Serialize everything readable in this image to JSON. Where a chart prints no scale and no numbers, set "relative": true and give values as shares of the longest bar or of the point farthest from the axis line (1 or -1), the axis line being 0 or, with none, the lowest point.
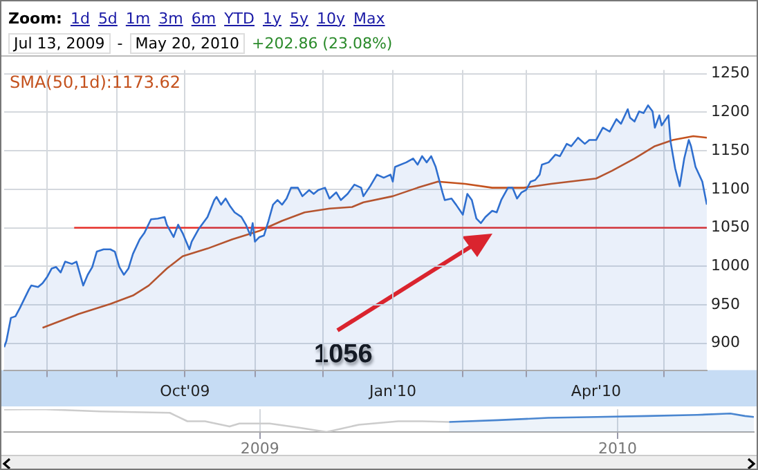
{
  "chart_data": [
    {
      "type": "area",
      "annotations": [
        "Zoom:",
        "1d",
        "5d",
        "1m",
        "3m",
        "6m",
        "YTD",
        "1y",
        "5y",
        "10y",
        "Max",
        "Jul 13, 2009",
        "-",
        "May 20, 2010",
        "+202.86 (23.08%)",
        "1056"
      ],
      "xlim": [
        "2009-07-13",
        "2010-05-20"
      ],
      "xticks": [
        {
          "value": "2009-08-01",
          "label": null
        },
        {
          "value": "2009-09-01",
          "label": null
        },
        {
          "value": "2009-10-01",
          "label": "Oct'09"
        },
        {
          "value": "2009-11-01",
          "label": null
        },
        {
          "value": "2009-12-01",
          "label": null
        },
        {
          "value": "2010-01-01",
          "label": "Jan'10"
        },
        {
          "value": "2010-02-01",
          "label": null
        },
        {
          "value": "2010-03-01",
          "label": null
        },
        {
          "value": "2010-04-01",
          "label": "Apr'10"
        },
        {
          "value": "2010-05-01",
          "label": null
        }
      ],
      "ylim": [
        865,
        1255
      ],
      "yticks": [
        900,
        950,
        1000,
        1050,
        1100,
        1150,
        1200,
        1250
      ],
      "grid": true,
      "legend": "top left",
      "marker": "none",
      "line_style": "solid",
      "series": [
        {
          "color": "#2f6fcf",
          "x": [
            "2009-07-13",
            "2009-07-14",
            "2009-07-16",
            "2009-07-18",
            "2009-07-20",
            "2009-07-24",
            "2009-07-25",
            "2009-07-28",
            "2009-07-30",
            "2009-08-01",
            "2009-08-03",
            "2009-08-05",
            "2009-08-07",
            "2009-08-09",
            "2009-08-12",
            "2009-08-14",
            "2009-08-17",
            "2009-08-19",
            "2009-08-21",
            "2009-08-23",
            "2009-08-26",
            "2009-08-29",
            "2009-08-31",
            "2009-09-02",
            "2009-09-04",
            "2009-09-06",
            "2009-09-08",
            "2009-09-11",
            "2009-09-13",
            "2009-09-16",
            "2009-09-19",
            "2009-09-22",
            "2009-09-23",
            "2009-09-26",
            "2009-09-28",
            "2009-09-30",
            "2009-10-03",
            "2009-10-04",
            "2009-10-07",
            "2009-10-11",
            "2009-10-14",
            "2009-10-15",
            "2009-10-17",
            "2009-10-19",
            "2009-10-21",
            "2009-10-23",
            "2009-10-26",
            "2009-10-28",
            "2009-10-30",
            "2009-10-31",
            "2009-11-01",
            "2009-11-03",
            "2009-11-05",
            "2009-11-07",
            "2009-11-09",
            "2009-11-11",
            "2009-11-13",
            "2009-11-15",
            "2009-11-17",
            "2009-11-20",
            "2009-11-22",
            "2009-11-25",
            "2009-11-27",
            "2009-11-29",
            "2009-12-02",
            "2009-12-04",
            "2009-12-07",
            "2009-12-09",
            "2009-12-12",
            "2009-12-15",
            "2009-12-18",
            "2009-12-19",
            "2009-12-22",
            "2009-12-25",
            "2009-12-28",
            "2009-12-31",
            "2010-01-01",
            "2010-01-02",
            "2010-01-07",
            "2010-01-10",
            "2010-01-12",
            "2010-01-14",
            "2010-01-16",
            "2010-01-18",
            "2010-01-20",
            "2010-01-23",
            "2010-01-24",
            "2010-01-27",
            "2010-01-29",
            "2010-02-01",
            "2010-02-03",
            "2010-02-05",
            "2010-02-07",
            "2010-02-09",
            "2010-02-11",
            "2010-02-14",
            "2010-02-16",
            "2010-02-18",
            "2010-02-21",
            "2010-02-23",
            "2010-02-25",
            "2010-02-27",
            "2010-03-01",
            "2010-03-03",
            "2010-03-05",
            "2010-03-07",
            "2010-03-08",
            "2010-03-11",
            "2010-03-14",
            "2010-03-16",
            "2010-03-19",
            "2010-03-21",
            "2010-03-24",
            "2010-03-27",
            "2010-03-29",
            "2010-04-01",
            "2010-04-04",
            "2010-04-07",
            "2010-04-10",
            "2010-04-12",
            "2010-04-15",
            "2010-04-16",
            "2010-04-18",
            "2010-04-20",
            "2010-04-22",
            "2010-04-24",
            "2010-04-26",
            "2010-04-27",
            "2010-04-29",
            "2010-04-30",
            "2010-05-03",
            "2010-05-04",
            "2010-05-06",
            "2010-05-08",
            "2010-05-10",
            "2010-05-12",
            "2010-05-13",
            "2010-05-15",
            "2010-05-18",
            "2010-05-20"
          ],
          "values": [
            895,
            903,
            933,
            935,
            946,
            970,
            975,
            973,
            978,
            986,
            997,
            999,
            992,
            1006,
            1003,
            1006,
            975,
            989,
            999,
            1019,
            1022,
            1022,
            1019,
            999,
            989,
            997,
            1016,
            1035,
            1043,
            1061,
            1062,
            1064,
            1054,
            1038,
            1054,
            1043,
            1022,
            1032,
            1048,
            1064,
            1086,
            1090,
            1080,
            1088,
            1078,
            1070,
            1064,
            1054,
            1040,
            1056,
            1032,
            1038,
            1040,
            1059,
            1080,
            1086,
            1080,
            1088,
            1102,
            1102,
            1091,
            1099,
            1094,
            1099,
            1102,
            1088,
            1096,
            1086,
            1094,
            1106,
            1102,
            1091,
            1104,
            1119,
            1115,
            1119,
            1110,
            1129,
            1135,
            1140,
            1132,
            1143,
            1135,
            1143,
            1129,
            1096,
            1086,
            1088,
            1080,
            1067,
            1094,
            1086,
            1062,
            1056,
            1064,
            1072,
            1070,
            1086,
            1102,
            1102,
            1088,
            1096,
            1099,
            1110,
            1112,
            1119,
            1132,
            1135,
            1145,
            1143,
            1159,
            1156,
            1167,
            1159,
            1164,
            1164,
            1180,
            1175,
            1191,
            1185,
            1204,
            1193,
            1188,
            1201,
            1199,
            1209,
            1201,
            1180,
            1196,
            1183,
            1196,
            1161,
            1127,
            1104,
            1140,
            1164,
            1156,
            1129,
            1110,
            1080
          ]
        },
        {
          "type": "line",
          "name": "SMA(50,1d):1173.62",
          "color": "#c4521e",
          "x": [
            "2009-07-30",
            "2009-08-15",
            "2009-08-29",
            "2009-09-08",
            "2009-09-15",
            "2009-09-23",
            "2009-09-30",
            "2009-10-11",
            "2009-10-22",
            "2009-11-03",
            "2009-11-13",
            "2009-11-23",
            "2009-12-04",
            "2009-12-14",
            "2009-12-19",
            "2010-01-01",
            "2010-01-12",
            "2010-01-21",
            "2010-02-02",
            "2010-02-14",
            "2010-02-28",
            "2010-03-12",
            "2010-04-01",
            "2010-04-08",
            "2010-04-18",
            "2010-04-27",
            "2010-05-05",
            "2010-05-14",
            "2010-05-20"
          ],
          "values": [
            920,
            938,
            951,
            962,
            975,
            997,
            1013,
            1023,
            1035,
            1046,
            1059,
            1070,
            1075,
            1077,
            1083,
            1091,
            1102,
            1110,
            1107,
            1102,
            1102,
            1107,
            1114,
            1124,
            1140,
            1156,
            1164,
            1169,
            1167
          ]
        },
        {
          "type": "line",
          "color": "#e8302a",
          "x": [
            "2009-08-13",
            "2010-05-20"
          ],
          "values": [
            1050,
            1050
          ]
        }
      ]
    },
    {
      "type": "line",
      "relative": true,
      "grid": "x",
      "marker": "none",
      "line_style": "solid",
      "xlim": [
        "2008-04-15",
        "2010-05-20"
      ],
      "xticks": [
        {
          "value": "2009-01-01",
          "label": "2009"
        },
        {
          "value": "2010-01-01",
          "label": "2010"
        }
      ],
      "series": [
        {
          "color": "#cccccc",
          "x": [
            "2008-04-15",
            "2008-05-23",
            "2008-07-22",
            "2008-10-01",
            "2008-10-19",
            "2008-11-06",
            "2008-12-01",
            "2008-12-11",
            "2009-01-11",
            "2009-02-10",
            "2009-03-10",
            "2009-04-12",
            "2009-05-22",
            "2009-06-16",
            "2009-07-13"
          ],
          "values": [
            0.99,
            1,
            0.9,
            0.84,
            0.47,
            0.47,
            0.24,
            0.37,
            0.37,
            0.19,
            0,
            0.32,
            0.47,
            0.47,
            0.44
          ]
        },
        {
          "type": "area",
          "color": "#4a86d0",
          "x": [
            "2009-07-13",
            "2009-09-01",
            "2009-10-22",
            "2009-12-11",
            "2010-01-31",
            "2010-03-23",
            "2010-04-26",
            "2010-05-11",
            "2010-05-20"
          ],
          "values": [
            0.44,
            0.52,
            0.62,
            0.66,
            0.7,
            0.75,
            0.81,
            0.7,
            0.66
          ]
        }
      ]
    }
  ]
}
